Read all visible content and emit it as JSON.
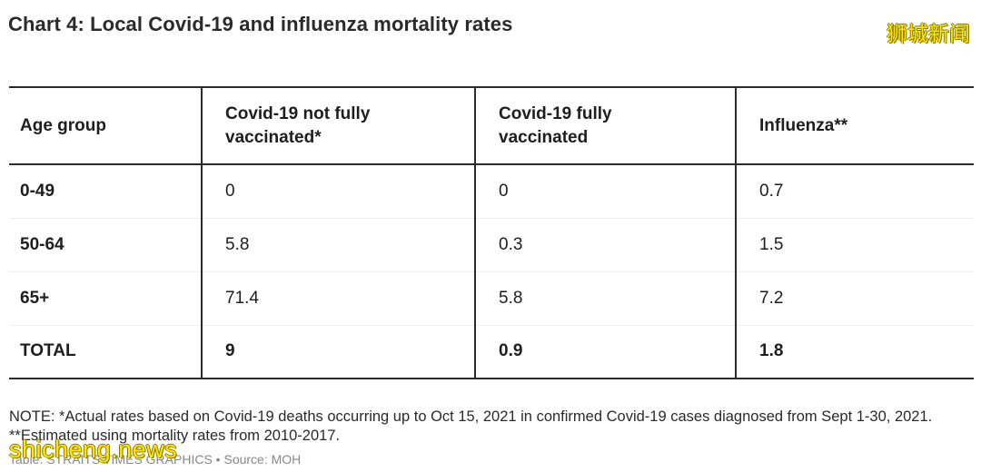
{
  "title": "Chart 4: Local Covid-19 and influenza mortality rates",
  "watermarks": {
    "top_right": "狮城新闻",
    "bottom_left": "shicheng.news"
  },
  "chart_data": {
    "type": "table",
    "title": "Chart 4: Local Covid-19 and influenza mortality rates",
    "columns": [
      "Age group",
      "Covid-19 not fully vaccinated*",
      "Covid-19 fully vaccinated",
      "Influenza**"
    ],
    "rows": [
      {
        "label": "0-49",
        "values": [
          "0",
          "0",
          "0.7"
        ]
      },
      {
        "label": "50-64",
        "values": [
          "5.8",
          "0.3",
          "1.5"
        ]
      },
      {
        "label": "65+",
        "values": [
          "71.4",
          "5.8",
          "7.2"
        ]
      }
    ],
    "total": {
      "label": "TOTAL",
      "values": [
        "9",
        "0.9",
        "1.8"
      ]
    }
  },
  "notes": [
    "NOTE: *Actual rates based on Covid-19 deaths occurring up to Oct 15, 2021 in confirmed Covid-19 cases diagnosed from Sept 1-30, 2021.",
    "**Estimated using mortality rates from 2010-2017."
  ],
  "source": "Table: STRAITS TIMES GRAPHICS • Source: MOH"
}
